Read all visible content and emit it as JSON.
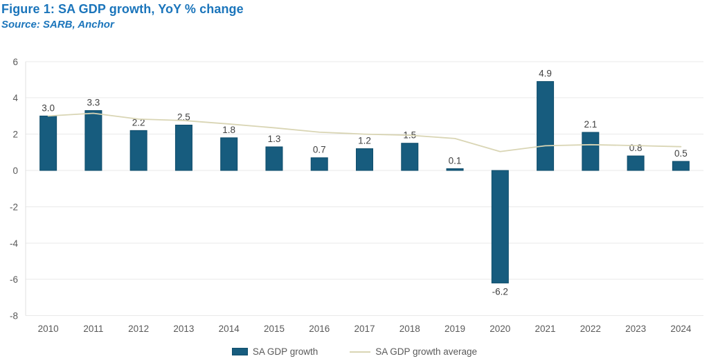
{
  "header": {
    "title": "Figure 1: SA GDP growth, YoY % change",
    "source": "Source: SARB, Anchor"
  },
  "colors": {
    "title_blue": "#1b75bb",
    "bar_fill": "#175c7e",
    "bar_stroke": "#0f4d6b",
    "line": "#d9d5b4",
    "grid": "#e9e9e9",
    "axis_line": "#e0e0e0",
    "axis_text": "#595959",
    "label_text": "#3f3f3f"
  },
  "chart_data": {
    "type": "bar",
    "title": "Figure 1: SA GDP growth, YoY % change",
    "xlabel": "",
    "ylabel": "",
    "categories": [
      "2010",
      "2011",
      "2012",
      "2013",
      "2014",
      "2015",
      "2016",
      "2017",
      "2018",
      "2019",
      "2020",
      "2021",
      "2022",
      "2023",
      "2024"
    ],
    "series": [
      {
        "name": "SA GDP growth",
        "type": "bar",
        "values": [
          3.0,
          3.3,
          2.2,
          2.5,
          1.8,
          1.3,
          0.7,
          1.2,
          1.5,
          0.1,
          -6.2,
          4.9,
          2.1,
          0.8,
          0.5
        ],
        "data_labels": [
          "3.0",
          "3.3",
          "2.2",
          "2.5",
          "1.8",
          "1.3",
          "0.7",
          "1.2",
          "1.5",
          "0.1",
          "-6.2",
          "4.9",
          "2.1",
          "0.8",
          "0.5"
        ]
      },
      {
        "name": "SA GDP growth average",
        "type": "line",
        "values": [
          3.0,
          3.15,
          2.83,
          2.75,
          2.56,
          2.35,
          2.11,
          2.0,
          1.94,
          1.76,
          1.04,
          1.36,
          1.42,
          1.37,
          1.31
        ]
      }
    ],
    "ylim": [
      -8,
      6
    ],
    "ytick_step": 2,
    "yticks": [
      "6",
      "4",
      "2",
      "0",
      "-2",
      "-4",
      "-6",
      "-8"
    ],
    "grid": true,
    "legend_position": "bottom"
  },
  "legend": {
    "items": [
      {
        "label": "SA GDP growth",
        "swatch": "bar"
      },
      {
        "label": "SA GDP growth average",
        "swatch": "line"
      }
    ]
  }
}
